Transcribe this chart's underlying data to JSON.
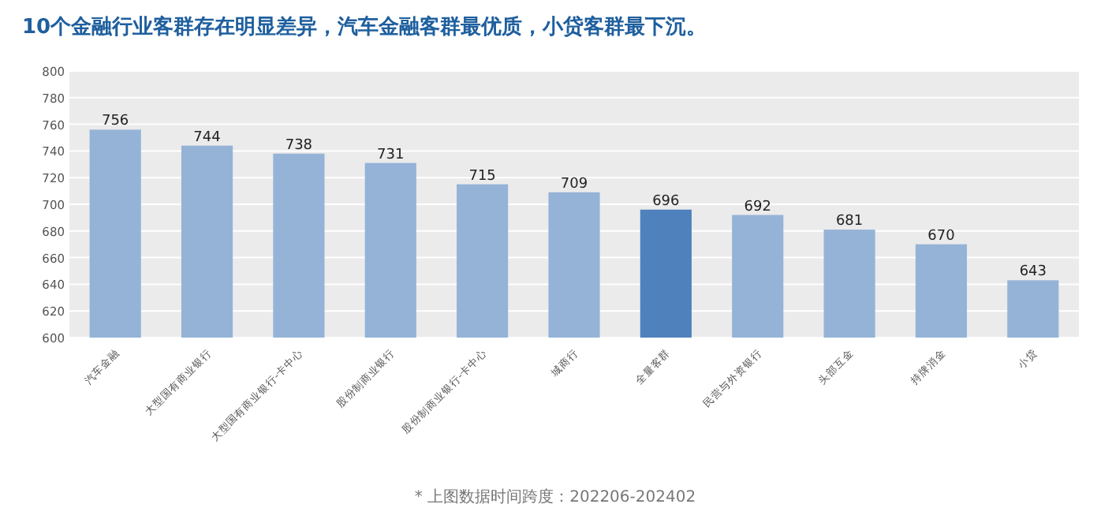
{
  "chart_data": {
    "type": "bar",
    "title": "10个金融行业客群存在明显差异，汽车金融客群最优质，小贷客群最下沉。",
    "categories": [
      "汽车金融",
      "大型国有商业银行",
      "大型国有商业银行-卡中心",
      "股份制商业银行",
      "股份制商业银行-卡中心",
      "城商行",
      "全量客群",
      "民营与外资银行",
      "头部互金",
      "持牌消金",
      "小贷"
    ],
    "values": [
      756,
      744,
      738,
      731,
      715,
      709,
      696,
      692,
      681,
      670,
      643
    ],
    "colors": [
      "#95b3d7",
      "#95b3d7",
      "#95b3d7",
      "#95b3d7",
      "#95b3d7",
      "#95b3d7",
      "#4f81bd",
      "#95b3d7",
      "#95b3d7",
      "#95b3d7",
      "#95b3d7"
    ],
    "ylim": [
      600,
      800
    ],
    "yticks": [
      600,
      620,
      640,
      660,
      680,
      700,
      720,
      740,
      760,
      780,
      800
    ],
    "grid": "y",
    "data_labels": true,
    "annotations": [
      "* 上图数据时间跨度：202206-202402"
    ]
  }
}
